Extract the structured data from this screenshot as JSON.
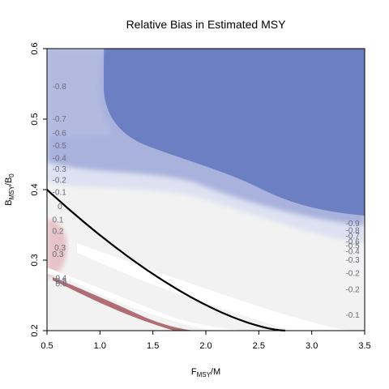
{
  "chart_data": {
    "type": "heatmap",
    "title": "Relative Bias in Estimated MSY",
    "xlabel": {
      "main": "F",
      "sub": "MSY",
      "rest": "/M"
    },
    "ylabel": {
      "main": "B",
      "sub": "MSY",
      "mid": "/B",
      "sub2": "0"
    },
    "xlim": [
      0.5,
      3.5
    ],
    "ylim": [
      0.2,
      0.6
    ],
    "xticks": [
      0.5,
      1.0,
      1.5,
      2.0,
      2.5,
      3.0,
      3.5
    ],
    "xtick_labels": [
      "0.5",
      "1.0",
      "1.5",
      "2.0",
      "2.5",
      "3.0",
      "3.5"
    ],
    "yticks": [
      0.2,
      0.3,
      0.4,
      0.5,
      0.6
    ],
    "ytick_labels": [
      "0.2",
      "0.3",
      "0.4",
      "0.5",
      "0.6"
    ],
    "colors": {
      "strong_negative": "#6b7fc2",
      "mid_negative": "#a9b2dd",
      "light_negative": "#dde1f1",
      "neutral": "#f2f2f2",
      "gap": "#ffffff",
      "positive": "#e6c3c8",
      "strong_positive": "#a04b55",
      "curve": "#000000"
    },
    "contour_labels_left": [
      {
        "text": "-0.8",
        "x": 0.55,
        "y": 0.546
      },
      {
        "text": "-0.7",
        "x": 0.55,
        "y": 0.5
      },
      {
        "text": "-0.6",
        "x": 0.55,
        "y": 0.48
      },
      {
        "text": "-0.5",
        "x": 0.55,
        "y": 0.462
      },
      {
        "text": "-0.4",
        "x": 0.55,
        "y": 0.444
      },
      {
        "text": "-0.3",
        "x": 0.55,
        "y": 0.429
      },
      {
        "text": "-0.2",
        "x": 0.55,
        "y": 0.413
      },
      {
        "text": "-0.1",
        "x": 0.55,
        "y": 0.396
      },
      {
        "text": "0",
        "x": 0.6,
        "y": 0.376
      },
      {
        "text": "0.1",
        "x": 0.55,
        "y": 0.357
      },
      {
        "text": "0.2",
        "x": 0.55,
        "y": 0.341
      },
      {
        "text": "0.3",
        "x": 0.57,
        "y": 0.317
      },
      {
        "text": "0.3",
        "x": 0.55,
        "y": 0.308
      },
      {
        "text": "0.4",
        "x": 0.58,
        "y": 0.274
      },
      {
        "text": "0.5",
        "x": 0.58,
        "y": 0.27
      },
      {
        "text": "0.6",
        "x": 0.58,
        "y": 0.266
      }
    ],
    "contour_labels_right": [
      {
        "text": "-0.9",
        "x": 3.32,
        "y": 0.352
      },
      {
        "text": "-0.8",
        "x": 3.32,
        "y": 0.342
      },
      {
        "text": "-0.7",
        "x": 3.32,
        "y": 0.334
      },
      {
        "text": "-0.6",
        "x": 3.32,
        "y": 0.326
      },
      {
        "text": "-0.5",
        "x": 3.32,
        "y": 0.32
      },
      {
        "text": "-0.4",
        "x": 3.32,
        "y": 0.312
      },
      {
        "text": "-0.3",
        "x": 3.32,
        "y": 0.3
      },
      {
        "text": "-0.2",
        "x": 3.32,
        "y": 0.281
      },
      {
        "text": "-0.2",
        "x": 3.32,
        "y": 0.258
      },
      {
        "text": "-0.1",
        "x": 3.32,
        "y": 0.222
      }
    ]
  }
}
